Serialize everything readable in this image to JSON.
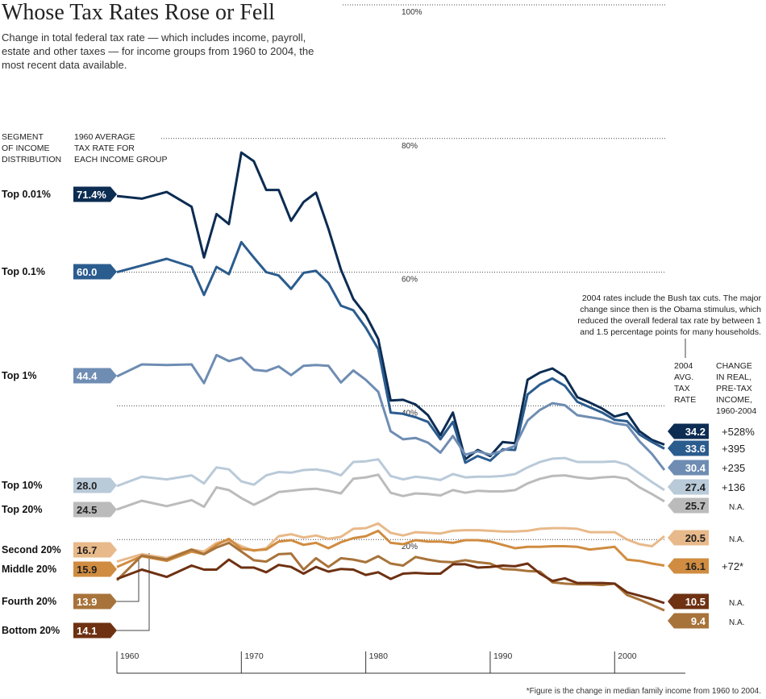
{
  "title": "Whose Tax Rates Rose or Fell",
  "subtitle": "Change in total federal tax rate — which includes income, payroll, estate and other taxes — for income groups from 1960 to 2004, the most recent data available.",
  "headers": {
    "segment": [
      "SEGMENT",
      "OF INCOME",
      "DISTRIBUTION"
    ],
    "start_rate": [
      "1960 AVERAGE",
      "TAX RATE FOR",
      "EACH INCOME GROUP"
    ],
    "end_rate": [
      "2004",
      "AVG.",
      "TAX",
      "RATE"
    ],
    "change": [
      "CHANGE",
      "IN REAL,",
      "PRE-TAX",
      "INCOME,",
      "1960-2004"
    ]
  },
  "note": [
    "2004 rates include the Bush tax cuts. The major",
    "change since then is the Obama stimulus, which",
    "reduced the overall federal tax rate by between 1",
    "and 1.5 percentage points for many households."
  ],
  "footnote": "*Figure is the change in median family income from 1960 to 2004.",
  "chart_data": {
    "type": "line",
    "title": "Whose Tax Rates Rose or Fell",
    "xlabel": "",
    "ylabel": "",
    "xlim": [
      1960,
      2004
    ],
    "ylim": [
      0,
      100
    ],
    "x_ticks": [
      "1960",
      "1970",
      "1980",
      "1990",
      "2000"
    ],
    "y_gridlines": [
      "100%",
      "80%",
      "60%",
      "40%",
      "20%"
    ],
    "grid": "dotted horizontal",
    "x": [
      1960,
      1962,
      1964,
      1966,
      1967,
      1968,
      1969,
      1970,
      1971,
      1972,
      1973,
      1974,
      1975,
      1976,
      1977,
      1978,
      1979,
      1980,
      1981,
      1982,
      1983,
      1984,
      1985,
      1986,
      1987,
      1988,
      1989,
      1990,
      1991,
      1992,
      1993,
      1994,
      1995,
      1996,
      1997,
      1998,
      1999,
      2000,
      2001,
      2002,
      2003,
      2004
    ],
    "series": [
      {
        "name": "Top 0.01%",
        "start_label": "71.4%",
        "end_label": "34.2",
        "change": "+528%",
        "color": "#0c2c52",
        "values": [
          71.4,
          71.0,
          72.0,
          69.8,
          62.2,
          68.7,
          67.2,
          77.9,
          76.6,
          72.3,
          72.3,
          67.7,
          70.5,
          71.9,
          66.5,
          60.4,
          56.0,
          53.6,
          50.0,
          40.8,
          40.9,
          40.2,
          38.6,
          35.6,
          39.0,
          32.0,
          33.4,
          32.5,
          34.6,
          34.4,
          43.9,
          45.0,
          45.6,
          44.4,
          41.3,
          40.5,
          39.6,
          38.4,
          38.9,
          36.2,
          34.9,
          34.2
        ]
      },
      {
        "name": "Top 0.1%",
        "start_label": "60.0",
        "end_label": "33.6",
        "change": "+395",
        "color": "#2b5c8e",
        "values": [
          60.0,
          61.0,
          62.0,
          60.8,
          56.6,
          60.8,
          59.7,
          64.5,
          62.2,
          60.0,
          59.5,
          57.5,
          59.9,
          60.2,
          58.4,
          55.0,
          54.3,
          51.7,
          48.5,
          39.0,
          38.8,
          38.3,
          37.6,
          35.0,
          37.6,
          31.5,
          32.5,
          31.8,
          33.5,
          33.4,
          41.7,
          43.2,
          44.1,
          43.0,
          40.6,
          39.8,
          39.0,
          37.9,
          37.7,
          35.7,
          34.6,
          33.6
        ]
      },
      {
        "name": "Top 1%",
        "start_label": "44.4",
        "end_label": "30.4",
        "change": "+235",
        "color": "#6f8db3",
        "values": [
          44.4,
          46.2,
          46.1,
          46.2,
          43.4,
          47.6,
          46.7,
          47.2,
          45.4,
          45.2,
          45.9,
          44.6,
          46.0,
          46.1,
          46.0,
          43.5,
          45.3,
          43.9,
          42.1,
          36.2,
          35.0,
          35.2,
          34.5,
          33.0,
          35.5,
          32.7,
          33.2,
          32.7,
          33.3,
          34.0,
          37.8,
          39.4,
          40.4,
          40.1,
          38.6,
          38.3,
          38.0,
          37.4,
          37.1,
          34.7,
          32.8,
          30.4
        ]
      },
      {
        "name": "Top 10%",
        "start_label": "28.0",
        "end_label": "27.4",
        "change": "+136",
        "color": "#b9cad9",
        "values": [
          28.0,
          29.4,
          29.0,
          29.6,
          28.4,
          30.8,
          30.5,
          28.7,
          28.2,
          29.6,
          30.1,
          30.0,
          30.4,
          30.5,
          30.2,
          29.6,
          31.6,
          31.7,
          32.0,
          29.5,
          29.0,
          29.4,
          29.2,
          28.9,
          29.8,
          29.3,
          29.4,
          29.4,
          29.5,
          29.8,
          30.8,
          31.6,
          32.1,
          32.2,
          31.6,
          31.6,
          31.6,
          31.7,
          31.2,
          29.9,
          28.6,
          27.4
        ]
      },
      {
        "name": "Top 20%",
        "start_label": "24.5",
        "end_label": "25.7",
        "change": "N.A.",
        "color": "#bbbbbb",
        "values": [
          24.5,
          25.8,
          25.0,
          25.9,
          24.9,
          27.8,
          27.4,
          26.2,
          25.2,
          26.1,
          27.1,
          27.3,
          27.5,
          27.6,
          27.3,
          26.9,
          29.1,
          29.3,
          29.7,
          27.0,
          26.5,
          26.9,
          26.8,
          26.6,
          27.4,
          27.0,
          27.3,
          27.2,
          27.2,
          27.4,
          28.4,
          29.1,
          29.5,
          29.6,
          29.3,
          29.1,
          29.3,
          29.4,
          29.1,
          27.8,
          26.8,
          25.7
        ]
      },
      {
        "name": "Second 20%",
        "start_label": "16.7",
        "end_label": "20.5",
        "change": "N.A.",
        "color": "#e8b98a",
        "values": [
          16.7,
          17.8,
          17.2,
          18.5,
          18.2,
          19.5,
          19.9,
          19.0,
          18.3,
          18.7,
          20.5,
          20.8,
          20.3,
          20.6,
          20.1,
          20.4,
          21.6,
          21.7,
          22.4,
          21.0,
          20.6,
          21.1,
          21.0,
          20.9,
          21.3,
          21.4,
          21.4,
          21.3,
          21.2,
          21.2,
          21.3,
          21.6,
          21.7,
          21.7,
          21.6,
          21.1,
          21.1,
          21.1,
          20.0,
          19.3,
          19.0,
          20.5
        ]
      },
      {
        "name": "Middle 20%",
        "start_label": "15.9",
        "end_label": "16.1",
        "change": "+72*",
        "color": "#d08c40",
        "values": [
          15.9,
          17.5,
          16.8,
          18.2,
          17.8,
          19.2,
          20.1,
          18.6,
          18.4,
          18.5,
          19.7,
          19.9,
          19.2,
          19.5,
          18.7,
          19.6,
          20.2,
          20.5,
          21.3,
          19.5,
          19.3,
          19.9,
          19.7,
          19.7,
          19.5,
          19.9,
          19.9,
          19.7,
          19.2,
          18.7,
          18.9,
          18.9,
          19.0,
          19.0,
          18.9,
          18.5,
          18.7,
          18.9,
          17.0,
          16.8,
          16.4,
          16.1
        ]
      },
      {
        "name": "Fourth 20%",
        "start_label": "13.9",
        "end_label": "9.4",
        "change": "N.A.",
        "color": "#a8733a",
        "values": [
          13.9,
          17.6,
          17.0,
          18.5,
          17.8,
          18.8,
          19.5,
          18.2,
          16.9,
          16.7,
          17.8,
          17.9,
          15.5,
          17.2,
          15.9,
          17.2,
          17.0,
          16.6,
          17.5,
          16.4,
          16.1,
          17.4,
          17.0,
          16.7,
          16.6,
          16.9,
          16.6,
          16.4,
          15.6,
          15.5,
          15.3,
          15.2,
          13.6,
          13.4,
          13.3,
          13.3,
          13.2,
          13.4,
          11.7,
          11.0,
          10.2,
          9.4
        ]
      },
      {
        "name": "Bottom 20%",
        "start_label": "14.1",
        "end_label": "10.5",
        "change": "N.A.",
        "color": "#6e3112",
        "values": [
          14.1,
          15.5,
          14.4,
          16.1,
          15.5,
          15.5,
          17.0,
          15.8,
          15.8,
          15.1,
          16.2,
          15.9,
          14.9,
          15.9,
          15.2,
          15.6,
          15.5,
          14.7,
          15.1,
          14.1,
          14.9,
          15.0,
          14.9,
          14.9,
          16.3,
          16.3,
          15.8,
          15.9,
          16.1,
          16.0,
          16.4,
          14.9,
          13.8,
          14.2,
          13.5,
          13.5,
          13.5,
          13.4,
          12.1,
          11.6,
          11.1,
          10.5
        ]
      }
    ]
  }
}
